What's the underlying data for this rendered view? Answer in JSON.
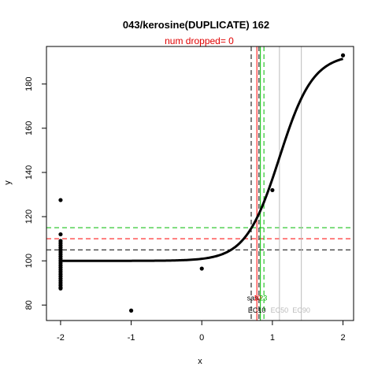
{
  "chart_data": {
    "type": "scatter",
    "title": "043/kerosine(DUPLICATE) 162",
    "subtitle": "num dropped= 0",
    "xlabel": "x",
    "ylabel": "y",
    "xlim": [
      -2.2,
      2.15
    ],
    "ylim": [
      73,
      197
    ],
    "x_ticks": [
      -2,
      -1,
      0,
      1,
      2
    ],
    "y_ticks": [
      80,
      100,
      120,
      140,
      160,
      180
    ],
    "points": [
      {
        "x": -2,
        "y": 127.5
      },
      {
        "x": -2,
        "y": 112
      },
      {
        "x": -2,
        "y": 109
      },
      {
        "x": -2,
        "y": 108
      },
      {
        "x": -2,
        "y": 107
      },
      {
        "x": -2,
        "y": 106
      },
      {
        "x": -2,
        "y": 105
      },
      {
        "x": -2,
        "y": 104
      },
      {
        "x": -2,
        "y": 103
      },
      {
        "x": -2,
        "y": 102
      },
      {
        "x": -2,
        "y": 101
      },
      {
        "x": -2,
        "y": 100
      },
      {
        "x": -2,
        "y": 99
      },
      {
        "x": -2,
        "y": 98
      },
      {
        "x": -2,
        "y": 97
      },
      {
        "x": -2,
        "y": 96
      },
      {
        "x": -2,
        "y": 95
      },
      {
        "x": -2,
        "y": 94
      },
      {
        "x": -2,
        "y": 93
      },
      {
        "x": -2,
        "y": 92
      },
      {
        "x": -2,
        "y": 91
      },
      {
        "x": -2,
        "y": 90
      },
      {
        "x": -2,
        "y": 89
      },
      {
        "x": -2,
        "y": 88
      },
      {
        "x": -2,
        "y": 87.5
      },
      {
        "x": -1,
        "y": 77.5
      },
      {
        "x": 0,
        "y": 96.5
      },
      {
        "x": 1,
        "y": 132
      },
      {
        "x": 2,
        "y": 193
      }
    ],
    "curve": {
      "bottom": 100,
      "top": 193.5,
      "ec50": 1.1,
      "hill": 4.2,
      "x_start": -2,
      "x_end": 2
    },
    "vlines": [
      {
        "x": 0.7,
        "color": "#000000",
        "dash": true
      },
      {
        "x": 0.78,
        "color": "#ff0000",
        "dash": false
      },
      {
        "x": 0.81,
        "color": "#000000",
        "dash": true
      },
      {
        "x": 0.83,
        "color": "#00bb00",
        "dash": false
      },
      {
        "x": 0.88,
        "color": "#00bb00",
        "dash": true
      },
      {
        "x": 1.1,
        "color": "#bbbbbb",
        "dash": false
      },
      {
        "x": 1.41,
        "color": "#bbbbbb",
        "dash": false
      }
    ],
    "hlines": [
      {
        "y": 115,
        "color": "#00bb00"
      },
      {
        "y": 110,
        "color": "#ff0000"
      },
      {
        "y": 105,
        "color": "#000000"
      }
    ],
    "annotations": [
      {
        "text": "sas",
        "x": 0.72,
        "y": 82,
        "color": "#000000"
      },
      {
        "text": "10",
        "x": 0.79,
        "y": 82,
        "color": "#ff0000"
      },
      {
        "text": "23",
        "x": 0.87,
        "y": 82,
        "color": "#00bb00"
      },
      {
        "text": "EC10",
        "x": 0.78,
        "y": 76.5,
        "color": "#000000"
      },
      {
        "text": "EC50",
        "x": 1.1,
        "y": 76.5,
        "color": "#bbbbbb"
      },
      {
        "text": "EC90",
        "x": 1.41,
        "y": 76.5,
        "color": "#bbbbbb"
      }
    ],
    "grid": false,
    "legend": "none"
  }
}
